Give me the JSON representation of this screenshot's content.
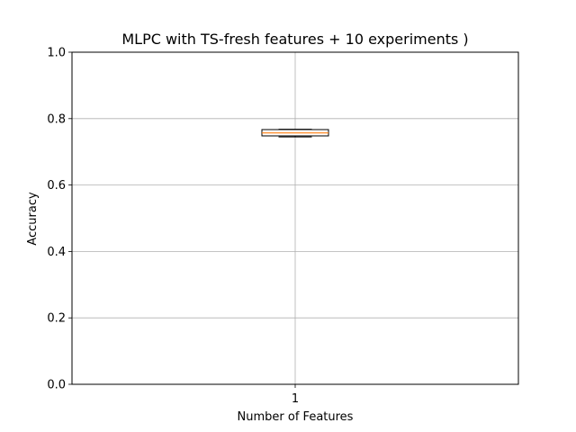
{
  "chart_data": {
    "type": "box",
    "title": "MLPC with TS-fresh features + 10 experiments )",
    "xlabel": "Number of Features",
    "ylabel": "Accuracy",
    "ylim": [
      0.0,
      1.0
    ],
    "yticks": [
      "0.0",
      "0.2",
      "0.4",
      "0.6",
      "0.8",
      "1.0"
    ],
    "xticks": [
      "1"
    ],
    "grid": true,
    "box": {
      "category": "1",
      "whisker_low": 0.745,
      "q1": 0.748,
      "median": 0.757,
      "q3": 0.767,
      "whisker_high": 0.768
    },
    "colors": {
      "median": "#ff7f0e",
      "box": "#000000",
      "grid": "#b0b0b0"
    }
  }
}
